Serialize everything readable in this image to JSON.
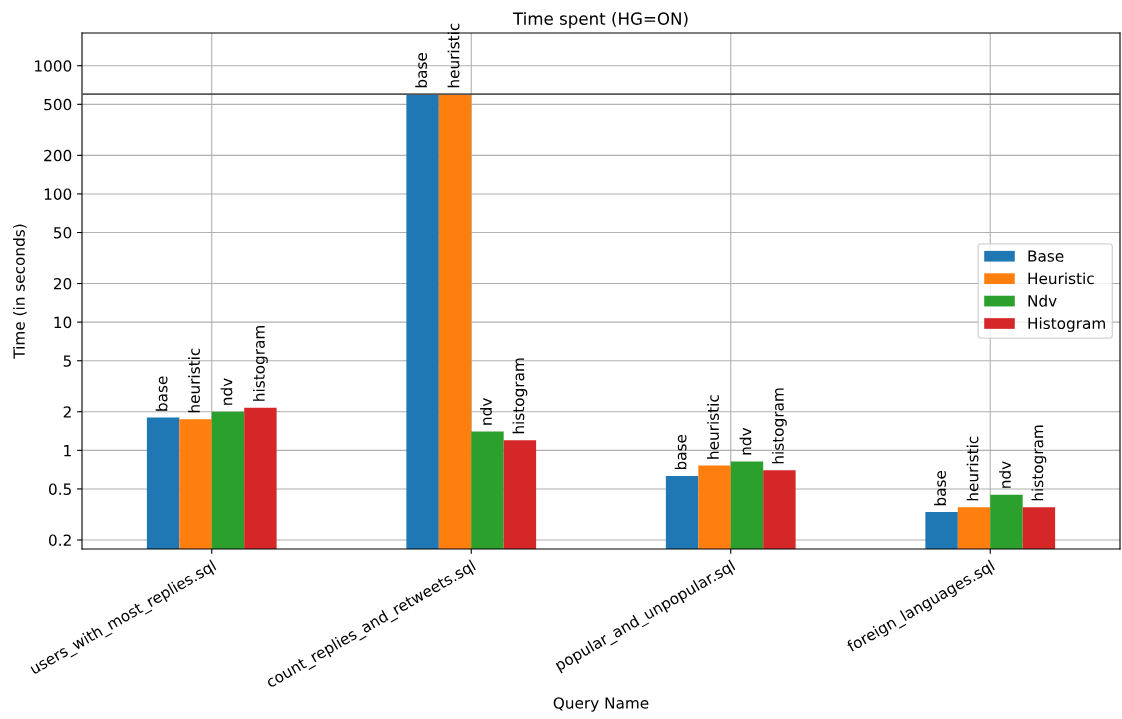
{
  "chart_data": {
    "type": "bar",
    "title": "Time spent (HG=ON)",
    "xlabel": "Query Name",
    "ylabel": "Time (in seconds)",
    "categories": [
      "users_with_most_replies.sql",
      "count_replies_and_retweets.sql",
      "popular_and_unpopular.sql",
      "foreign_languages.sql"
    ],
    "series": [
      {
        "name": "Base",
        "color": "#1f77b4",
        "values": [
          1.8,
          600,
          0.63,
          0.33
        ],
        "value_labels": [
          "base",
          "base",
          "base",
          "base"
        ]
      },
      {
        "name": "Heuristic",
        "color": "#ff7f0e",
        "values": [
          1.75,
          600,
          0.76,
          0.36
        ],
        "value_labels": [
          "heuristic",
          "heuristic",
          "heuristic",
          "heuristic"
        ]
      },
      {
        "name": "Ndv",
        "color": "#2ca02c",
        "values": [
          2.0,
          1.4,
          0.82,
          0.45
        ],
        "value_labels": [
          "ndv",
          "ndv",
          "ndv",
          "ndv"
        ]
      },
      {
        "name": "Histogram",
        "color": "#d62728",
        "values": [
          2.15,
          1.2,
          0.7,
          0.36
        ],
        "value_labels": [
          "histogram",
          "histogram",
          "histogram",
          "histogram"
        ]
      }
    ],
    "log": "y",
    "ylim": [
      0.17,
      1800
    ],
    "yticks": [
      0.2,
      0.5,
      1,
      2,
      5,
      10,
      20,
      50,
      100,
      200,
      500,
      1000
    ],
    "ref_lines": [
      {
        "axis": "y",
        "value": 600,
        "color": "#555555"
      }
    ],
    "grid": true,
    "legend": "center right"
  }
}
